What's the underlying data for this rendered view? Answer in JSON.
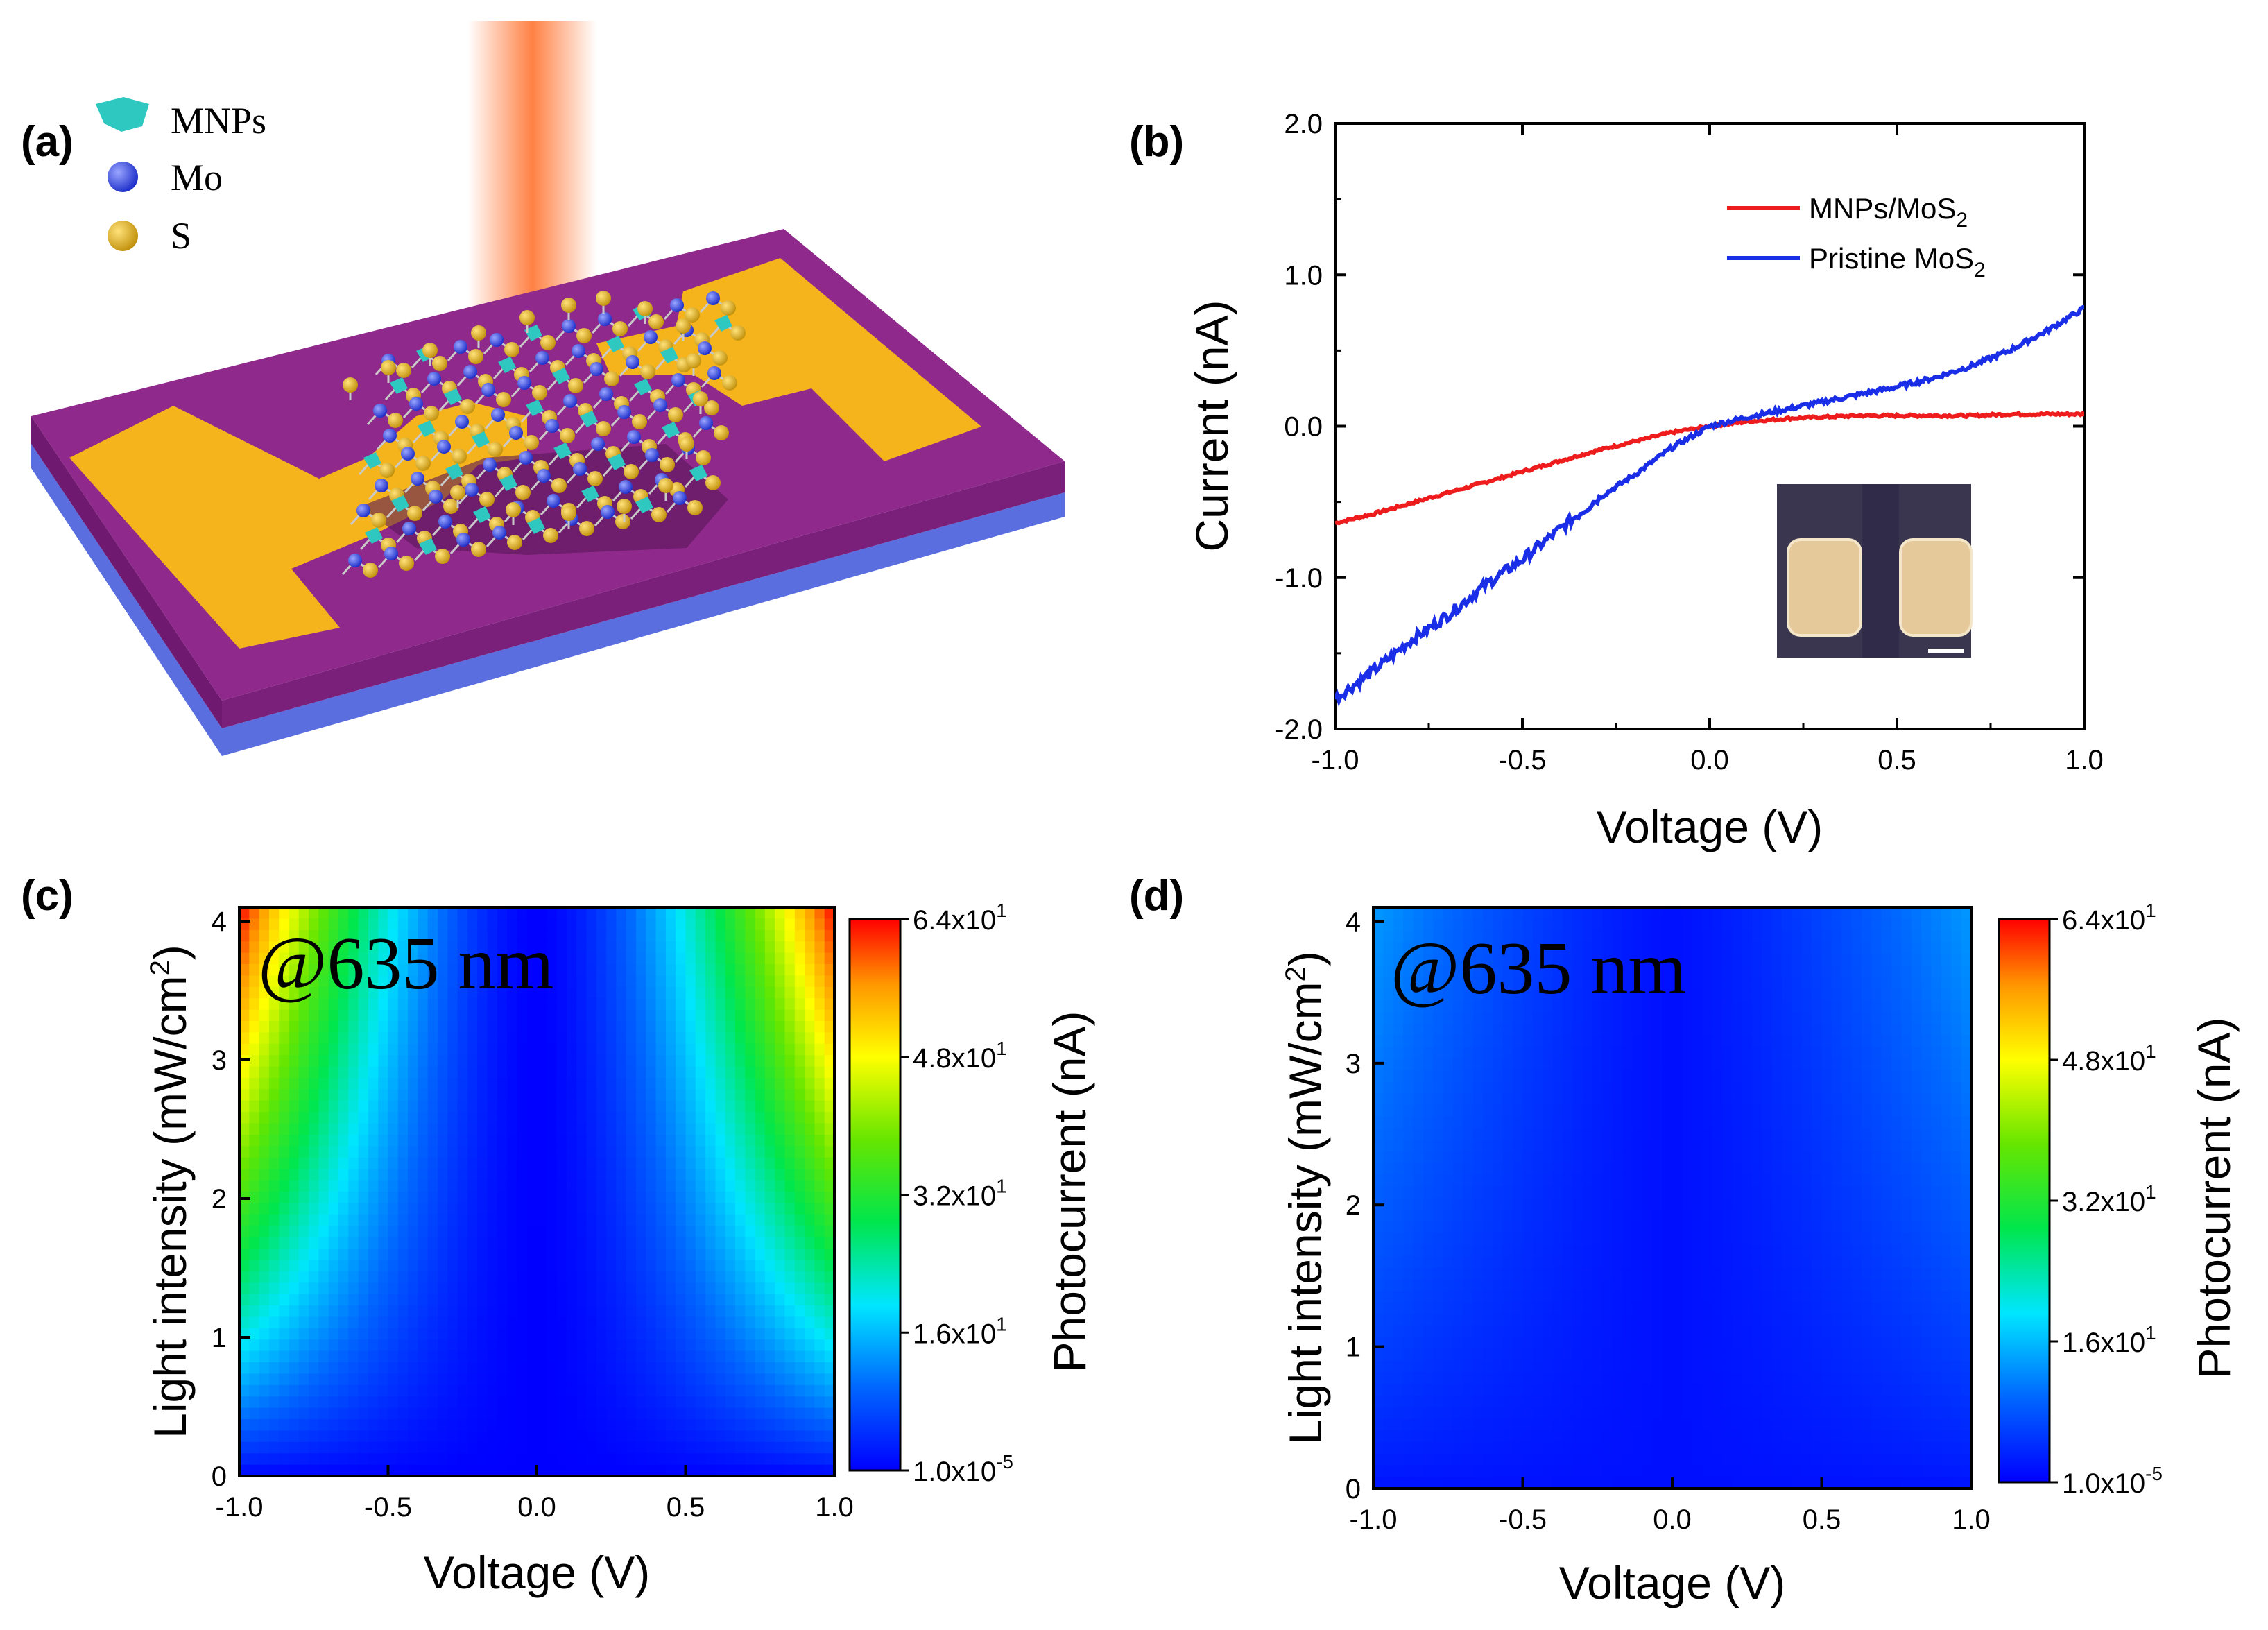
{
  "panel_labels": [
    "(a)",
    "(b)",
    "(c)",
    "(d)"
  ],
  "schematic": {
    "legend": [
      {
        "label": "MNPs",
        "color": "#2ec8c0",
        "icon": "flake-icon"
      },
      {
        "label": "Mo",
        "color": "#2a3ccf",
        "icon": "sphere-icon"
      },
      {
        "label": "S",
        "color": "#d9a91a",
        "icon": "sphere-icon"
      }
    ],
    "colors": {
      "substrate_top": "#8f2a8c",
      "substrate_side": "#6f1a70",
      "base": "#5a6ee0",
      "electrode": "#f6b41c",
      "beam": "#ff7a3a"
    }
  },
  "chart_data": [
    {
      "panel": "(b)",
      "type": "line",
      "xlabel": "Voltage (V)",
      "ylabel": "Current (nA)",
      "xlim": [
        -1.0,
        1.0
      ],
      "ylim": [
        -2.0,
        2.0
      ],
      "xticks": [
        "-1.0",
        "-0.5",
        "0.0",
        "0.5",
        "1.0"
      ],
      "yticks": [
        "-2.0",
        "-1.0",
        "0.0",
        "1.0",
        "2.0"
      ],
      "series": [
        {
          "name": "MNPs/MoS",
          "subscript": "2",
          "color": "#ee1c1c",
          "x": [
            -1.0,
            -0.9,
            -0.8,
            -0.7,
            -0.6,
            -0.5,
            -0.4,
            -0.3,
            -0.2,
            -0.1,
            0.0,
            0.1,
            0.2,
            0.3,
            0.4,
            0.5,
            0.6,
            0.7,
            0.8,
            0.9,
            1.0
          ],
          "y": [
            -0.64,
            -0.58,
            -0.51,
            -0.44,
            -0.37,
            -0.3,
            -0.23,
            -0.16,
            -0.1,
            -0.04,
            0.0,
            0.03,
            0.05,
            0.06,
            0.07,
            0.07,
            0.07,
            0.07,
            0.08,
            0.08,
            0.08
          ]
        },
        {
          "name": "Pristine MoS",
          "subscript": "2",
          "color": "#1a2ee8",
          "x": [
            -1.0,
            -0.9,
            -0.8,
            -0.7,
            -0.6,
            -0.5,
            -0.4,
            -0.3,
            -0.2,
            -0.1,
            0.0,
            0.1,
            0.2,
            0.3,
            0.4,
            0.5,
            0.6,
            0.7,
            0.8,
            0.9,
            1.0
          ],
          "y": [
            -1.8,
            -1.62,
            -1.42,
            -1.25,
            -1.05,
            -0.88,
            -0.68,
            -0.48,
            -0.32,
            -0.14,
            0.0,
            0.06,
            0.11,
            0.16,
            0.21,
            0.26,
            0.32,
            0.4,
            0.5,
            0.63,
            0.78
          ]
        }
      ],
      "inset": {
        "description": "optical micrograph of device",
        "colors": {
          "background": "#3a3650",
          "electrode": "#e6c99a"
        }
      }
    },
    {
      "panel": "(c)",
      "type": "heatmap",
      "annotation": "@635 nm",
      "xlabel": "Voltage (V)",
      "ylabel": "Light intensity (mW/cm",
      "ylabel_sup": "2",
      "ylabel_end": ")",
      "xlim": [
        -1.0,
        1.0
      ],
      "ylim": [
        0,
        4.1
      ],
      "xticks": [
        "-1.0",
        "-0.5",
        "0.0",
        "0.5",
        "1.0"
      ],
      "yticks": [
        "0",
        "1",
        "2",
        "3",
        "4"
      ],
      "colorbar": {
        "label": "Photocurrent (nA)",
        "ticks": [
          {
            "base": "6.4x10",
            "exp": "1"
          },
          {
            "base": "4.8x10",
            "exp": "1"
          },
          {
            "base": "3.2x10",
            "exp": "1"
          },
          {
            "base": "1.6x10",
            "exp": "1"
          },
          {
            "base": "1.0x10",
            "exp": "-5"
          }
        ],
        "range": [
          0,
          64
        ]
      },
      "model": {
        "max_value_nA": 64,
        "description": "photocurrent ~ k * |V|^1.6 * I^0.8, maximum ~64 nA at |V|=1.0 V, I=4.1 mW/cm2"
      }
    },
    {
      "panel": "(d)",
      "type": "heatmap",
      "annotation": "@635 nm",
      "xlabel": "Voltage (V)",
      "ylabel": "Light intensity (mW/cm",
      "ylabel_sup": "2",
      "ylabel_end": ")",
      "xlim": [
        -1.0,
        1.0
      ],
      "ylim": [
        0,
        4.1
      ],
      "xticks": [
        "-1.0",
        "-0.5",
        "0.0",
        "0.5",
        "1.0"
      ],
      "yticks": [
        "0",
        "1",
        "2",
        "3",
        "4"
      ],
      "colorbar": {
        "label": "Photocurrent (nA)",
        "ticks": [
          {
            "base": "6.4x10",
            "exp": "1"
          },
          {
            "base": "4.8x10",
            "exp": "1"
          },
          {
            "base": "3.2x10",
            "exp": "1"
          },
          {
            "base": "1.6x10",
            "exp": "1"
          },
          {
            "base": "1.0x10",
            "exp": "-5"
          }
        ],
        "range": [
          0,
          64
        ]
      },
      "model": {
        "max_value_nA": 12,
        "description": "low photocurrent, maximum ~12 nA at corners"
      }
    }
  ]
}
